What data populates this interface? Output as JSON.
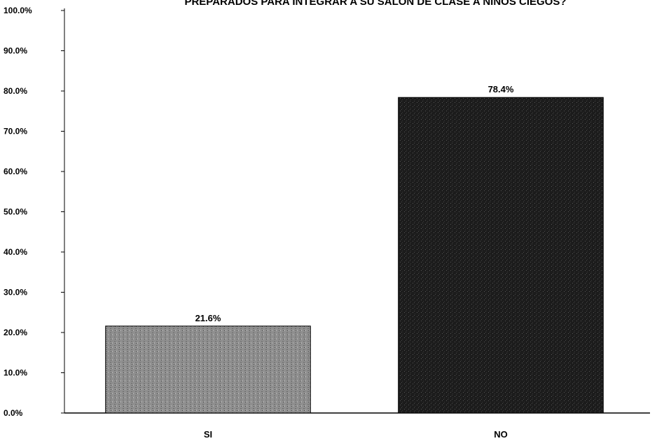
{
  "chart_data": {
    "type": "bar",
    "title": "PREPARADOS PARA INTEGRAR A SU SALON DE CLASE A NIÑOS CIEGOS?",
    "xlabel": "",
    "ylabel": "",
    "categories": [
      "SI",
      "NO"
    ],
    "values": [
      21.6,
      78.4
    ],
    "value_labels": [
      "21.6%",
      "78.4%"
    ],
    "ylim": [
      0,
      100
    ],
    "yticks": [
      0,
      10,
      20,
      30,
      40,
      50,
      60,
      70,
      80,
      90,
      100
    ],
    "ytick_labels": [
      "0.0%",
      "10.0%",
      "20.0%",
      "30.0%",
      "40.0%",
      "50.0%",
      "60.0%",
      "70.0%",
      "80.0%",
      "90.0%",
      "100.0%"
    ],
    "grid": false,
    "legend": "none",
    "bar_colors": [
      "#8c8c8c",
      "#1e1e1e"
    ]
  }
}
